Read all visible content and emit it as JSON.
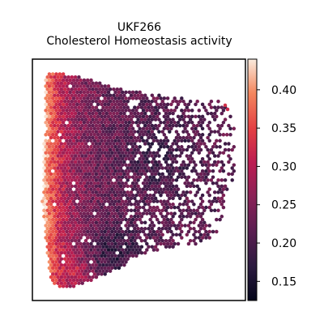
{
  "chart_data": {
    "type": "scatter",
    "subtype": "spatial-hexbin",
    "title_line1": "UKF266",
    "title_line2": "Cholesterol Homeostasis activity",
    "xlabel": "",
    "ylabel": "",
    "colorbar": {
      "colormap": "rocket",
      "range": [
        0.125,
        0.44
      ],
      "ticks": [
        0.15,
        0.2,
        0.25,
        0.3,
        0.35,
        0.4
      ],
      "tick_labels": [
        "0.15",
        "0.20",
        "0.25",
        "0.30",
        "0.35",
        "0.40"
      ]
    },
    "axes_ticks": false,
    "grid": false,
    "legend": "none"
  }
}
